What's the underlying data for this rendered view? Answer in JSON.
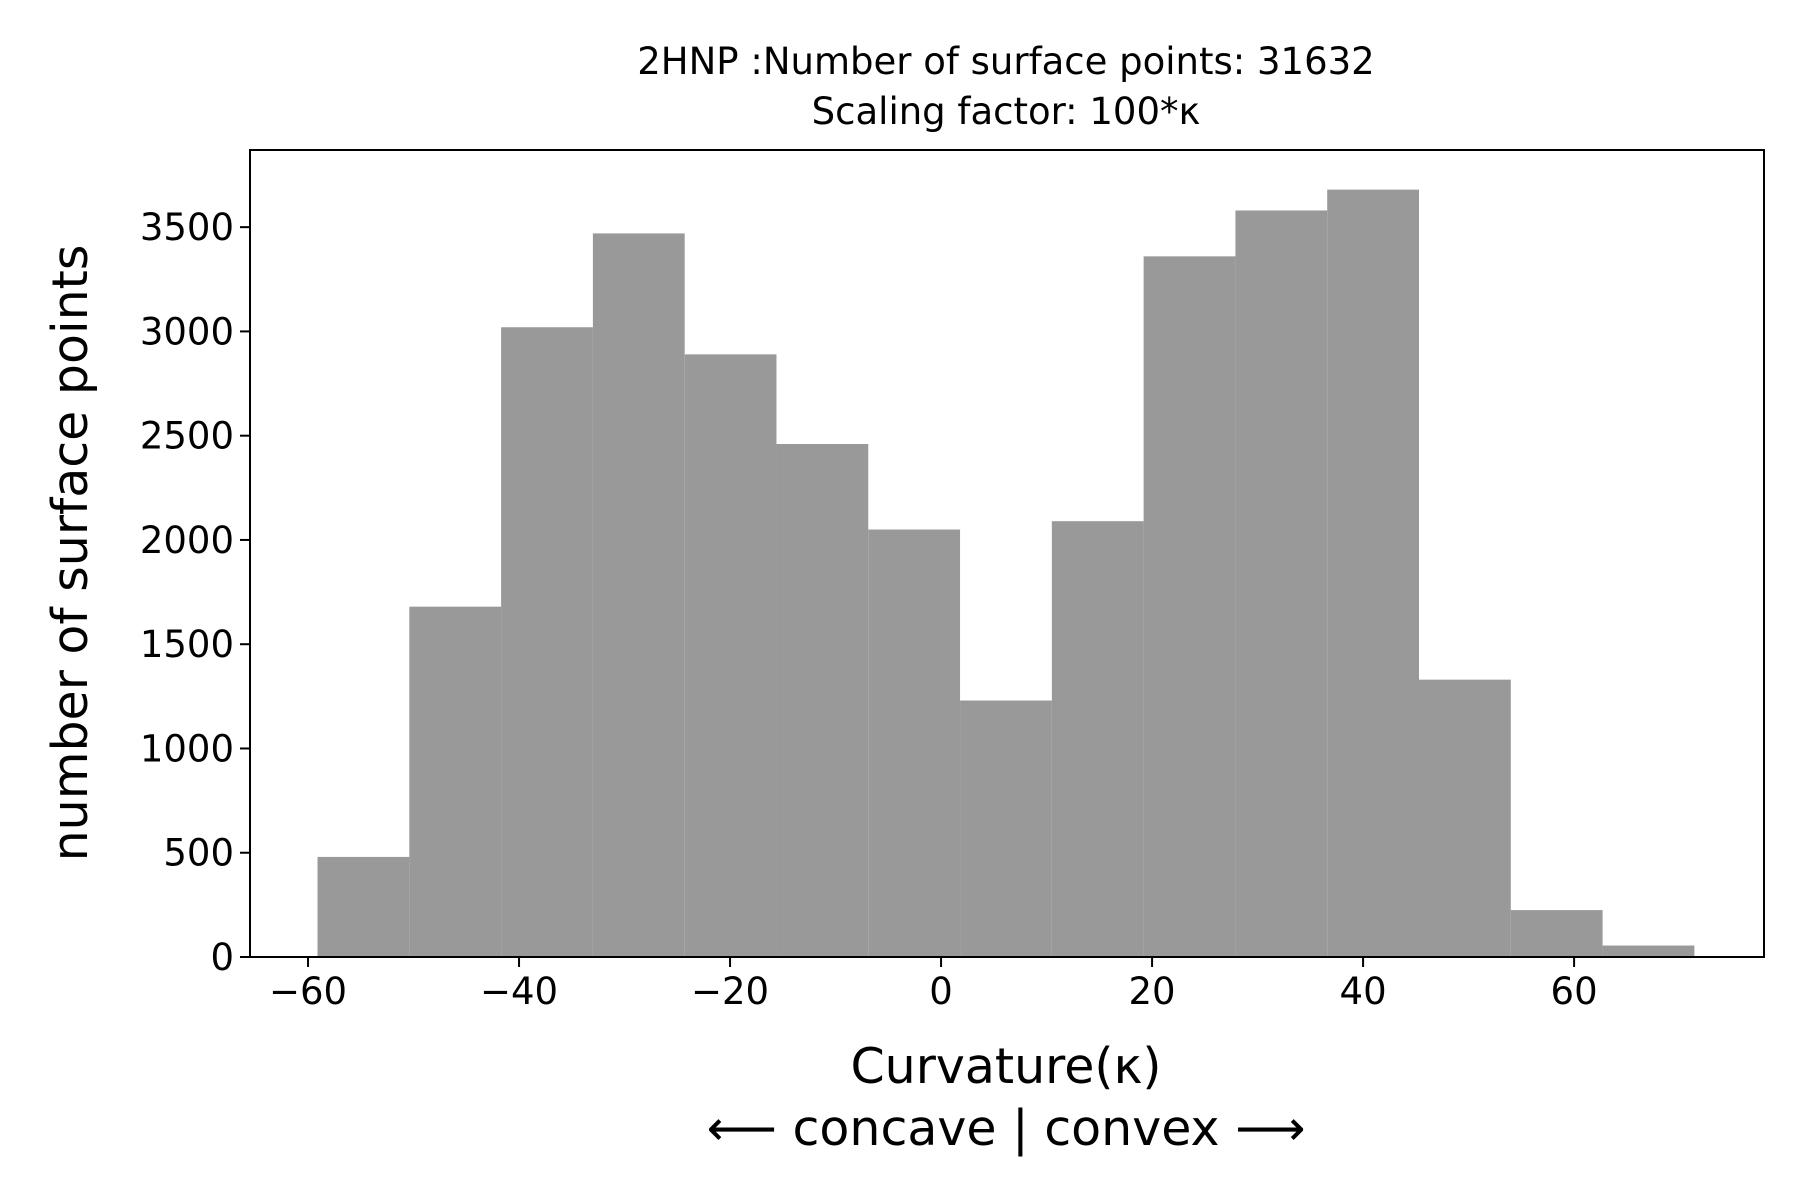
{
  "chart_data": {
    "type": "bar",
    "title": "2HNP :Number of surface points: 31632",
    "subtitle": "Scaling factor: 100*κ",
    "xlabel": "Curvature(κ)",
    "xlabel2": "⟵ concave | convex ⟶",
    "ylabel": "number of surface points",
    "xlim": [
      -65.5,
      78
    ],
    "ylim": [
      0,
      3870
    ],
    "bar_color": "#999999",
    "grid": false,
    "x_ticks": [
      -60,
      -40,
      -20,
      0,
      20,
      40,
      60
    ],
    "x_tick_labels": [
      "−60",
      "−40",
      "−20",
      "0",
      "20",
      "40",
      "60"
    ],
    "y_ticks": [
      0,
      500,
      1000,
      1500,
      2000,
      2500,
      3000,
      3500
    ],
    "y_tick_labels": [
      "0",
      "500",
      "1000",
      "1500",
      "2000",
      "2500",
      "3000",
      "3500"
    ],
    "bin_edges": [
      -59.1,
      -50.4,
      -41.7,
      -33.0,
      -24.3,
      -15.6,
      -6.9,
      1.8,
      10.5,
      19.2,
      27.9,
      36.6,
      45.3,
      54.0,
      62.7,
      71.4
    ],
    "values": [
      480,
      1680,
      3020,
      3470,
      2890,
      2460,
      2050,
      1230,
      2090,
      3360,
      3580,
      3680,
      1330,
      225,
      55
    ]
  }
}
